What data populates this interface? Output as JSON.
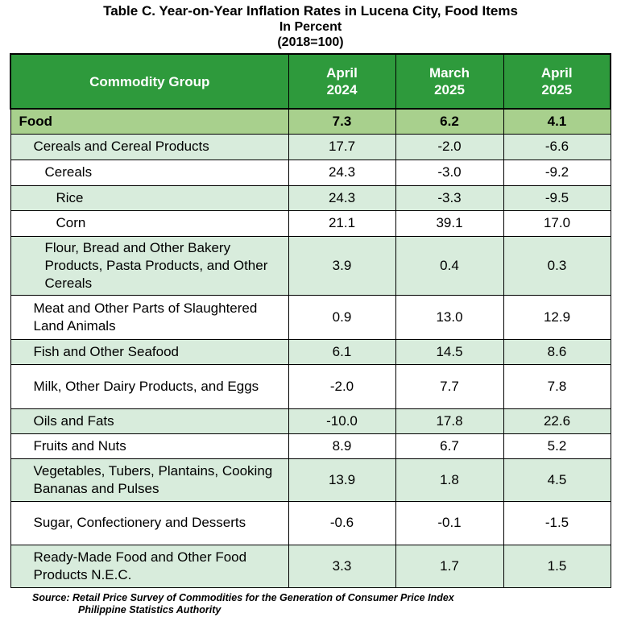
{
  "title": {
    "line1": "Table C. Year-on-Year Inflation Rates in Lucena City, Food Items",
    "line2": "In Percent",
    "line3": "(2018=100)"
  },
  "table": {
    "headers": {
      "commodity": "Commodity Group",
      "col1_line1": "April",
      "col1_line2": "2024",
      "col2_line1": "March",
      "col2_line2": "2025",
      "col3_line1": "April",
      "col3_line2": "2025"
    },
    "rows": [
      {
        "label": "Food",
        "v1": "7.3",
        "v2": "6.2",
        "v3": "4.1"
      },
      {
        "label": "Cereals and Cereal Products",
        "v1": "17.7",
        "v2": "-2.0",
        "v3": "-6.6"
      },
      {
        "label": "Cereals",
        "v1": "24.3",
        "v2": "-3.0",
        "v3": "-9.2"
      },
      {
        "label": "Rice",
        "v1": "24.3",
        "v2": "-3.3",
        "v3": "-9.5"
      },
      {
        "label": "Corn",
        "v1": "21.1",
        "v2": "39.1",
        "v3": "17.0"
      },
      {
        "label": "Flour, Bread and Other Bakery Products, Pasta Products, and Other Cereals",
        "v1": "3.9",
        "v2": "0.4",
        "v3": "0.3"
      },
      {
        "label": "Meat and Other Parts of Slaughtered Land Animals",
        "v1": "0.9",
        "v2": "13.0",
        "v3": "12.9"
      },
      {
        "label": "Fish and Other Seafood",
        "v1": "6.1",
        "v2": "14.5",
        "v3": "8.6"
      },
      {
        "label": "Milk, Other Dairy Products, and Eggs",
        "v1": "-2.0",
        "v2": "7.7",
        "v3": "7.8"
      },
      {
        "label": "Oils and Fats",
        "v1": "-10.0",
        "v2": "17.8",
        "v3": "22.6"
      },
      {
        "label": "Fruits and Nuts",
        "v1": "8.9",
        "v2": "6.7",
        "v3": "5.2"
      },
      {
        "label": "Vegetables, Tubers, Plantains, Cooking Bananas and Pulses",
        "v1": "13.9",
        "v2": "1.8",
        "v3": "4.5"
      },
      {
        "label": "Sugar, Confectionery and Desserts",
        "v1": "-0.6",
        "v2": "-0.1",
        "v3": "-1.5"
      },
      {
        "label": "Ready-Made Food and Other Food Products N.E.C.",
        "v1": "3.3",
        "v2": "1.7",
        "v3": "1.5"
      }
    ]
  },
  "source": {
    "line1": "Source: Retail Price Survey of Commodities for the Generation of Consumer Price Index",
    "line2": "Philippine Statistics Authority"
  },
  "colors": {
    "header_green": "#2e9a3c",
    "food_row_green": "#a8d08d",
    "shaded_row_green": "#d8ecdc"
  }
}
